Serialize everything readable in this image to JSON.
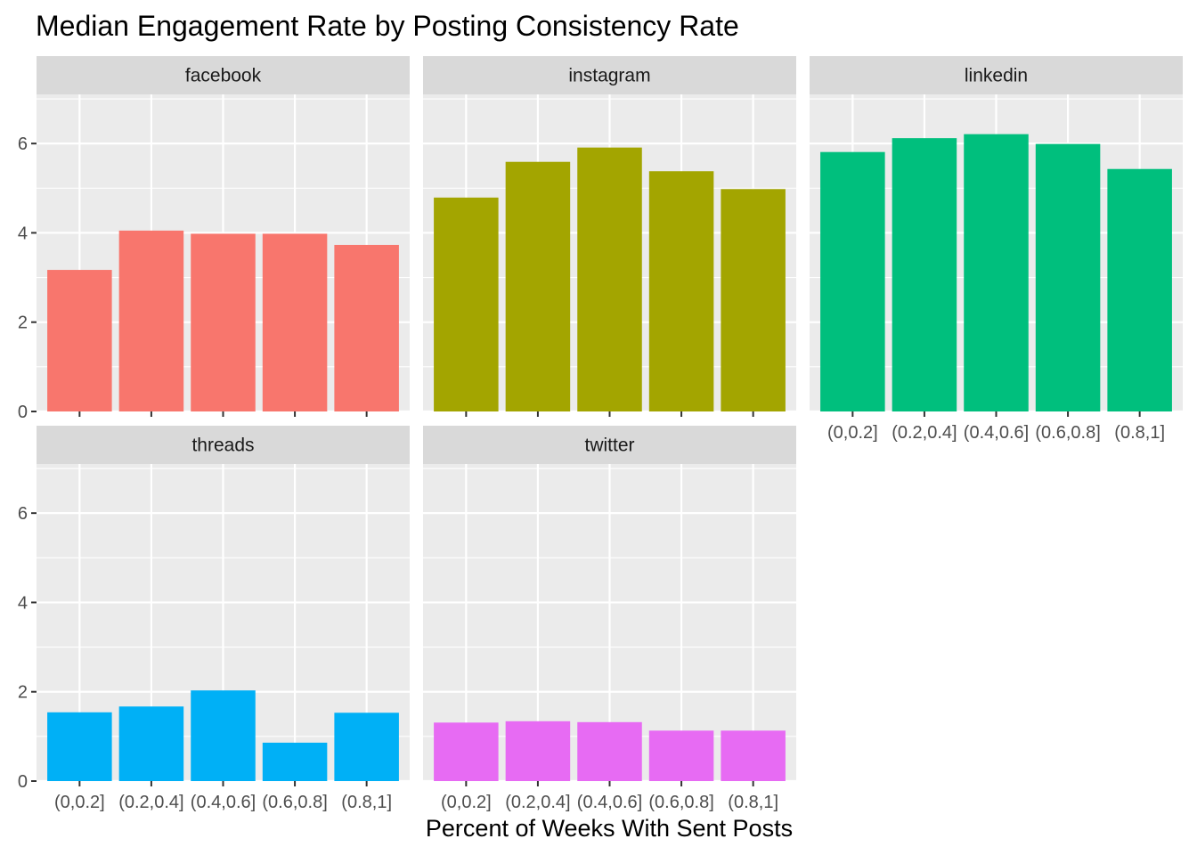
{
  "chart_data": {
    "type": "bar",
    "title": "Median Engagement Rate by Posting Consistency Rate",
    "xlabel": "Percent of Weeks With Sent Posts",
    "ylabel": "",
    "categories": [
      "(0,0.2]",
      "(0.2,0.4]",
      "(0.4,0.6]",
      "(0.6,0.8]",
      "(0.8,1]"
    ],
    "y_ticks": [
      "0",
      "2",
      "4",
      "6"
    ],
    "ylim": [
      0,
      7.1
    ],
    "grid": true,
    "legend": "none",
    "facets": [
      {
        "name": "facebook",
        "color": "#F8766D",
        "values": [
          3.17,
          4.05,
          3.98,
          3.98,
          3.73
        ]
      },
      {
        "name": "instagram",
        "color": "#A3A500",
        "values": [
          4.79,
          5.59,
          5.91,
          5.38,
          4.98
        ]
      },
      {
        "name": "linkedin",
        "color": "#00BF7D",
        "values": [
          5.81,
          6.12,
          6.21,
          5.99,
          5.43
        ]
      },
      {
        "name": "threads",
        "color": "#00B0F6",
        "values": [
          1.54,
          1.67,
          2.03,
          0.86,
          1.53
        ]
      },
      {
        "name": "twitter",
        "color": "#E76BF3",
        "values": [
          1.31,
          1.34,
          1.32,
          1.13,
          1.13
        ]
      }
    ]
  }
}
